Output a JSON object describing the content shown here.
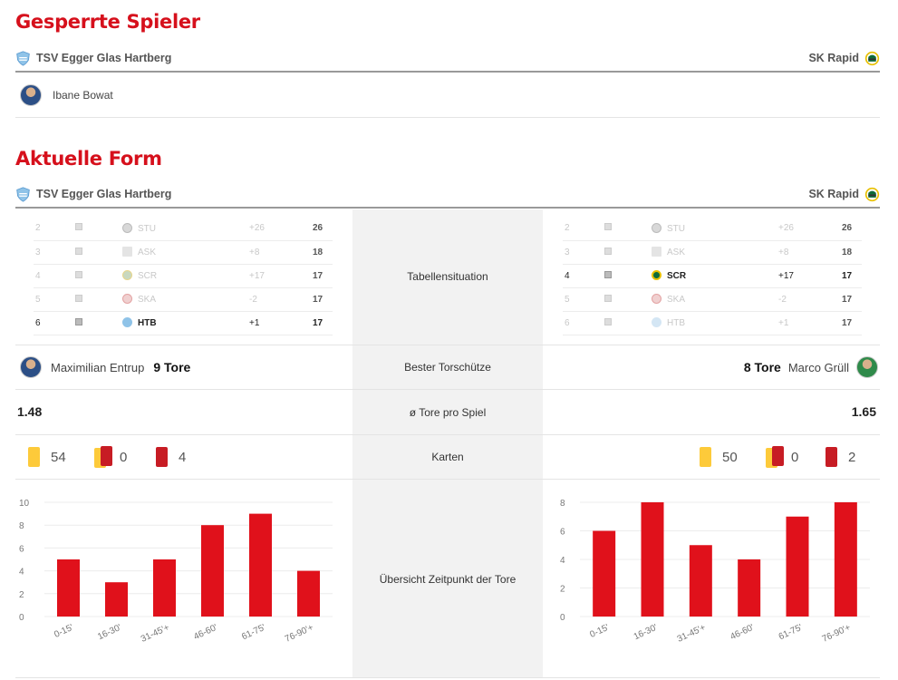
{
  "banned": {
    "title": "Gesperrte Spieler",
    "home_team": "TSV Egger Glas Hartberg",
    "away_team": "SK Rapid",
    "players": [
      {
        "name": "Ibane Bowat"
      }
    ]
  },
  "form": {
    "title": "Aktuelle Form",
    "home_team": "TSV Egger Glas Hartberg",
    "away_team": "SK Rapid"
  },
  "labels": {
    "table": "Tabellensituation",
    "scorer": "Bester Torschütze",
    "goals": "ø Tore pro Spiel",
    "cards": "Karten",
    "timing": "Übersicht Zeitpunkt der Tore"
  },
  "home": {
    "table": [
      {
        "rank": "2",
        "team": "STU",
        "diff": "+26",
        "pts": "26"
      },
      {
        "rank": "3",
        "team": "ASK",
        "diff": "+8",
        "pts": "18"
      },
      {
        "rank": "4",
        "team": "SCR",
        "diff": "+17",
        "pts": "17"
      },
      {
        "rank": "5",
        "team": "SKA",
        "diff": "-2",
        "pts": "17"
      },
      {
        "rank": "6",
        "team": "HTB",
        "diff": "+1",
        "pts": "17"
      }
    ],
    "scorer_name": "Maximilian Entrup",
    "scorer_goals": "9 Tore",
    "avg": "1.48",
    "yellow": "54",
    "yellowred": "0",
    "red": "4"
  },
  "away": {
    "table": [
      {
        "rank": "2",
        "team": "STU",
        "diff": "+26",
        "pts": "26"
      },
      {
        "rank": "3",
        "team": "ASK",
        "diff": "+8",
        "pts": "18"
      },
      {
        "rank": "4",
        "team": "SCR",
        "diff": "+17",
        "pts": "17"
      },
      {
        "rank": "5",
        "team": "SKA",
        "diff": "-2",
        "pts": "17"
      },
      {
        "rank": "6",
        "team": "HTB",
        "diff": "+1",
        "pts": "17"
      }
    ],
    "scorer_name": "Marco Grüll",
    "scorer_goals": "8 Tore",
    "avg": "1.65",
    "yellow": "50",
    "yellowred": "0",
    "red": "2"
  },
  "colors": {
    "accent": "#d6101c",
    "bar": "#e0111b",
    "yellow": "#fdca3a",
    "red": "#c71c24"
  },
  "chart_data": [
    {
      "type": "bar",
      "title": "",
      "categories": [
        "0-15'",
        "16-30'",
        "31-45'+",
        "46-60'",
        "61-75'",
        "76-90'+"
      ],
      "values": [
        5,
        3,
        5,
        8,
        9,
        4
      ],
      "ylim": [
        0,
        10
      ],
      "yticks": [
        0,
        2,
        4,
        6,
        8,
        10
      ]
    },
    {
      "type": "bar",
      "title": "",
      "categories": [
        "0-15'",
        "16-30'",
        "31-45'+",
        "46-60'",
        "61-75'",
        "76-90'+"
      ],
      "values": [
        6,
        8,
        5,
        4,
        7,
        8
      ],
      "ylim": [
        0,
        8
      ],
      "yticks": [
        0,
        2,
        4,
        6,
        8
      ]
    }
  ]
}
